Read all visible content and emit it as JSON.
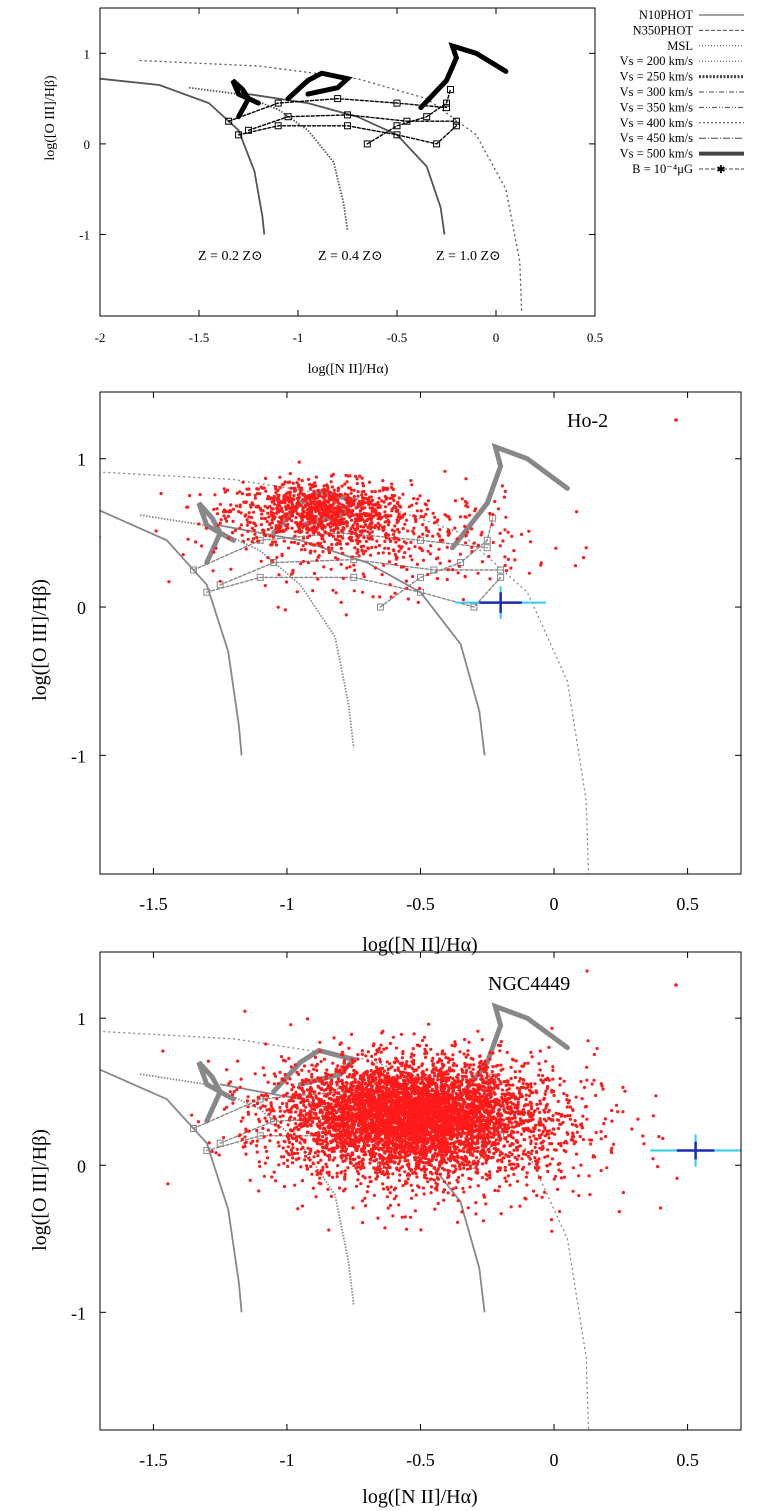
{
  "chart_data": [
    {
      "type": "scatter",
      "title": "",
      "xlabel": "log([N II]/Hα)",
      "ylabel": "log([O III]/Hβ)",
      "xlim": [
        -2,
        0.5
      ],
      "ylim": [
        -1.9,
        1.5
      ],
      "xticks": [
        "-2",
        "-1.5",
        "-1",
        "-0.5",
        "0",
        "0.5"
      ],
      "yticks": [
        "1",
        "0",
        "-1"
      ],
      "legend_position": "outside-right",
      "legend": [
        {
          "name": "N10PHOT",
          "style": "solid"
        },
        {
          "name": "N350PHOT",
          "style": "dashed"
        },
        {
          "name": "MSL",
          "style": "dotted"
        },
        {
          "name": "Vs = 200 km/s",
          "style": "dotted"
        },
        {
          "name": "Vs = 250 km/s",
          "style": "thick-dotted"
        },
        {
          "name": "Vs = 300 km/s",
          "style": "dash-dot"
        },
        {
          "name": "Vs = 350 km/s",
          "style": "dash-dot-dot"
        },
        {
          "name": "Vs = 400 km/s",
          "style": "short-dash"
        },
        {
          "name": "Vs = 450 km/s",
          "style": "long-dash-dot"
        },
        {
          "name": "Vs = 500 km/s",
          "style": "thick-solid"
        },
        {
          "name": "B = 10⁻⁴μG",
          "style": "dash-star"
        }
      ],
      "annotations": [
        "Z = 0.2 Z⊙",
        "Z = 0.4 Z⊙",
        "Z = 1.0 Z⊙"
      ],
      "series": [
        {
          "x": [
            -2.0,
            -1.7,
            -1.45,
            -1.3,
            -1.22,
            -1.18,
            -1.17
          ],
          "y": [
            0.72,
            0.65,
            0.45,
            0.15,
            -0.3,
            -0.8,
            -1.0
          ]
        },
        {
          "x": [
            -1.55,
            -1.3,
            -1.1,
            -0.95,
            -0.82,
            -0.77,
            -0.75
          ],
          "y": [
            0.62,
            0.55,
            0.38,
            0.15,
            -0.2,
            -0.65,
            -0.95
          ]
        },
        {
          "x": [
            -1.25,
            -0.95,
            -0.7,
            -0.5,
            -0.35,
            -0.28,
            -0.26
          ],
          "y": [
            0.55,
            0.45,
            0.3,
            0.1,
            -0.25,
            -0.7,
            -1.0
          ]
        },
        {
          "x": [
            -1.8,
            -1.2,
            -0.7,
            -0.35,
            -0.1,
            0.05,
            0.12,
            0.13
          ],
          "y": [
            0.92,
            0.86,
            0.72,
            0.5,
            0.1,
            -0.5,
            -1.3,
            -1.85
          ]
        }
      ]
    },
    {
      "type": "scatter",
      "title": "",
      "xlabel": "log([N II]/Hα)",
      "ylabel": "log([O III]/Hβ)",
      "xlim": [
        -1.7,
        0.7
      ],
      "ylim": [
        -1.8,
        1.45
      ],
      "xticks": [
        "-1.5",
        "-1",
        "-0.5",
        "0",
        "0.5"
      ],
      "yticks": [
        "1",
        "0",
        "-1"
      ],
      "legend_position": "top-right",
      "legend": [
        "Ho-2"
      ],
      "series": [
        {
          "name": "Ho-2",
          "points": "cloud",
          "center": [
            -0.88,
            0.65
          ],
          "spread": [
            0.17,
            0.1
          ],
          "count": 900
        },
        {
          "name": "Ho-2",
          "points": "cloud",
          "center": [
            -0.65,
            0.45
          ],
          "spread": [
            0.28,
            0.16
          ],
          "count": 420
        }
      ],
      "error_bar": {
        "x": -0.2,
        "y": 0.03,
        "xerr": 0.08,
        "yerr": 0.07,
        "xerr_light": 0.17,
        "yerr_light": 0.11
      }
    },
    {
      "type": "scatter",
      "title": "",
      "xlabel": "log([N II]/Hα)",
      "ylabel": "log([O III]/Hβ)",
      "xlim": [
        -1.7,
        0.7
      ],
      "ylim": [
        -1.8,
        1.45
      ],
      "xticks": [
        "-1.5",
        "-1",
        "-0.5",
        "0",
        "0.5"
      ],
      "yticks": [
        "1",
        "0",
        "-1"
      ],
      "legend_position": "top-right",
      "legend": [
        "NGC4449"
      ],
      "series": [
        {
          "name": "NGC4449",
          "points": "cloud",
          "center": [
            -0.55,
            0.35
          ],
          "spread": [
            0.22,
            0.17
          ],
          "count": 4200
        },
        {
          "name": "NGC4449",
          "points": "cloud",
          "center": [
            -0.45,
            0.25
          ],
          "spread": [
            0.3,
            0.25
          ],
          "count": 1600
        }
      ],
      "error_bar": {
        "x": 0.53,
        "y": 0.1,
        "xerr": 0.07,
        "yerr": 0.06,
        "xerr_light": 0.17,
        "yerr_light": 0.11
      }
    }
  ]
}
